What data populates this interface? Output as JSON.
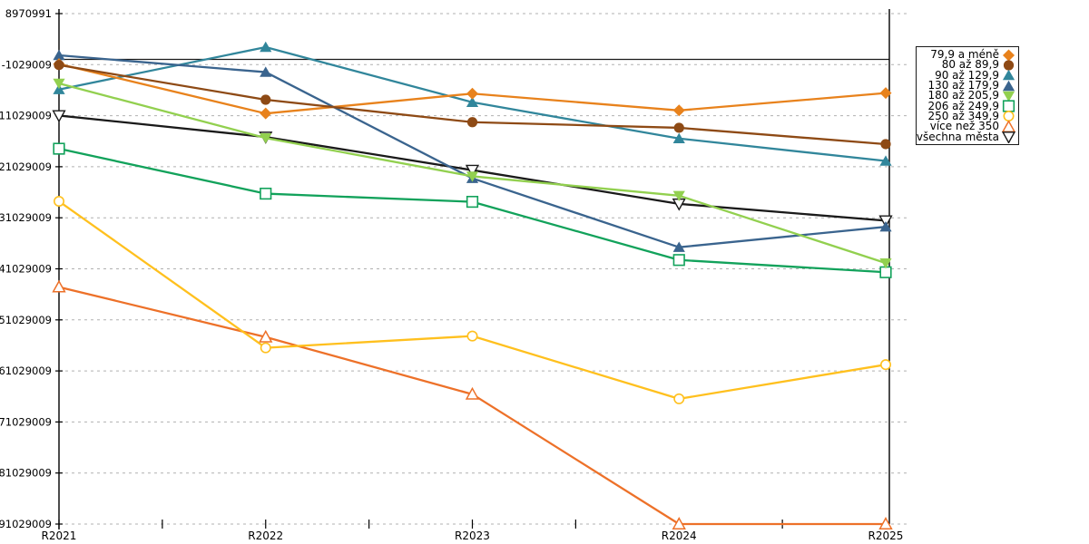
{
  "chart_data": {
    "type": "line",
    "title": "",
    "xlabel": "",
    "ylabel": "",
    "x_categories": [
      "R2021",
      "R2022",
      "R2023",
      "R2024",
      "R2025"
    ],
    "y_ticks": [
      8970991,
      -1029009,
      -11029009,
      -21029009,
      -31029009,
      -41029009,
      -51029009,
      -61029009,
      -71029009,
      -81029009,
      -91029009
    ],
    "y_axis_top_value": 8970991,
    "y_axis_bottom_value": -91029009,
    "zero_line_value": 0,
    "grid": "horizontal-dashed",
    "legend_position": "right",
    "series": [
      {
        "name": "79,9 a méně",
        "color": "#E8821C",
        "marker": "diamond",
        "values": [
          -900000,
          -10600000,
          -6700000,
          -10000000,
          -6600000
        ]
      },
      {
        "name": "80 až 89,9",
        "color": "#8E4A15",
        "marker": "circle",
        "values": [
          -1100000,
          -7900000,
          -12300000,
          -13400000,
          -16600000
        ]
      },
      {
        "name": "90 až 129,9",
        "color": "#31869B",
        "marker": "triangle-up",
        "values": [
          -5900000,
          2400000,
          -8400000,
          -15500000,
          -19900000
        ]
      },
      {
        "name": "130 až 179,9",
        "color": "#3A648E",
        "marker": "triangle-up",
        "values": [
          800000,
          -2500000,
          -23300000,
          -36800000,
          -32800000
        ]
      },
      {
        "name": "180 až 205,9",
        "color": "#92D04F",
        "marker": "triangle-down",
        "values": [
          -4700000,
          -15400000,
          -22900000,
          -26700000,
          -39900000
        ]
      },
      {
        "name": "206 až 249,9",
        "color": "#12A25B",
        "marker": "square-open",
        "values": [
          -17500000,
          -26300000,
          -27900000,
          -39300000,
          -41700000
        ]
      },
      {
        "name": "250 až 349,9",
        "color": "#FFC01E",
        "marker": "circle-open",
        "values": [
          -27800000,
          -56500000,
          -54200000,
          -66500000,
          -59800000
        ]
      },
      {
        "name": "více než 350",
        "color": "#ED7129",
        "marker": "triangle-up-open",
        "values": [
          -44600000,
          -54400000,
          -65600000,
          -91029009,
          -91029009
        ]
      },
      {
        "name": "všechna města",
        "color": "#1A1A1A",
        "marker": "triangle-down-open",
        "values": [
          -11000000,
          -15200000,
          -21700000,
          -28300000,
          -31600000
        ]
      }
    ]
  },
  "colors": {
    "grid": "#B0B0B0",
    "axis": "#000000",
    "zero_line": "#1A1A1A",
    "right_boundary_line": "#000000",
    "background": "#FFFFFF"
  }
}
